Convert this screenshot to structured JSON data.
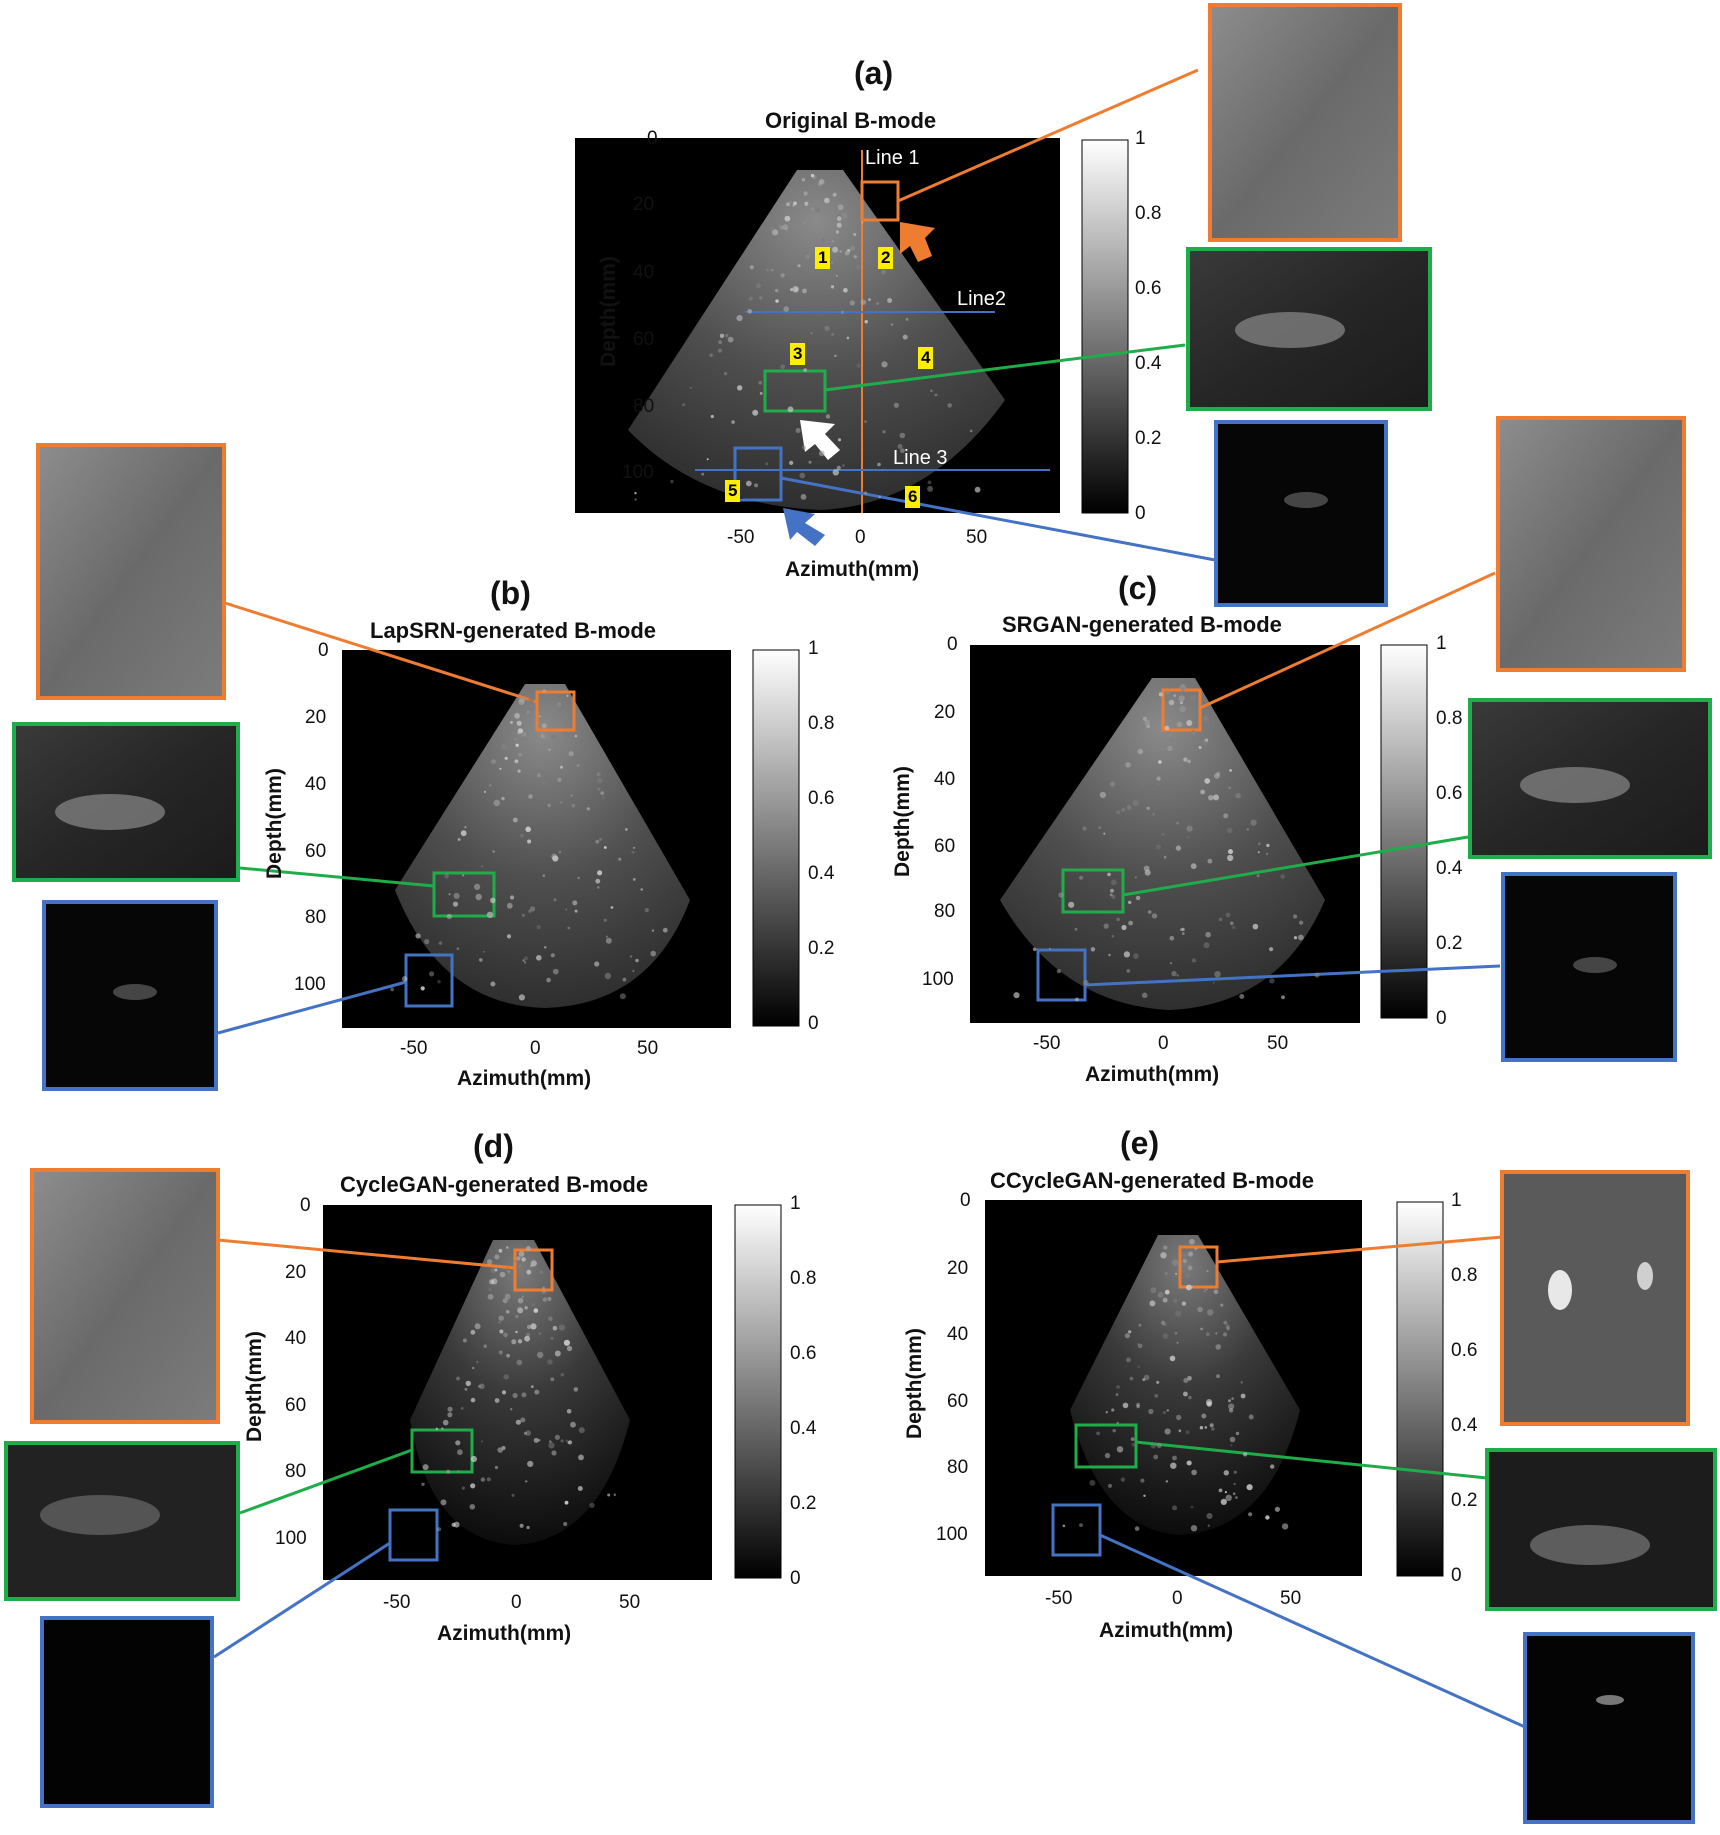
{
  "colors": {
    "orange": "#ee7d31",
    "green": "#1fad4a",
    "blue": "#4472c4",
    "highlight": "#ffee00",
    "background": "#000000"
  },
  "panels": [
    {
      "id": "a",
      "label": "(a)",
      "title": "Original B-mode",
      "xlabel": "Azimuth(mm)",
      "ylabel": "Depth(mm)",
      "yticks": [
        "0",
        "20",
        "40",
        "60",
        "80",
        "100"
      ],
      "xticks": [
        "-50",
        "0",
        "50"
      ],
      "colorbar_ticks": [
        "1",
        "0.8",
        "0.6",
        "0.4",
        "0.2",
        "0"
      ],
      "annotations": {
        "line1": "Line 1",
        "line2": "Line2",
        "line3": "Line 3",
        "regions": [
          "1",
          "2",
          "3",
          "4",
          "5",
          "6"
        ]
      }
    },
    {
      "id": "b",
      "label": "(b)",
      "title": "LapSRN-generated B-mode",
      "xlabel": "Azimuth(mm)",
      "ylabel": "Depth(mm)",
      "yticks": [
        "0",
        "20",
        "40",
        "60",
        "80",
        "100"
      ],
      "xticks": [
        "-50",
        "0",
        "50"
      ],
      "colorbar_ticks": [
        "1",
        "0.8",
        "0.6",
        "0.4",
        "0.2",
        "0"
      ]
    },
    {
      "id": "c",
      "label": "(c)",
      "title": "SRGAN-generated B-mode",
      "xlabel": "Azimuth(mm)",
      "ylabel": "Depth(mm)",
      "yticks": [
        "0",
        "20",
        "40",
        "60",
        "80",
        "100"
      ],
      "xticks": [
        "-50",
        "0",
        "50"
      ],
      "colorbar_ticks": [
        "1",
        "0.8",
        "0.6",
        "0.4",
        "0.2",
        "0"
      ]
    },
    {
      "id": "d",
      "label": "(d)",
      "title": "CycleGAN-generated B-mode",
      "xlabel": "Azimuth(mm)",
      "ylabel": "Depth(mm)",
      "yticks": [
        "0",
        "20",
        "40",
        "60",
        "80",
        "100"
      ],
      "xticks": [
        "-50",
        "0",
        "50"
      ],
      "colorbar_ticks": [
        "1",
        "0.8",
        "0.6",
        "0.4",
        "0.2",
        "0"
      ]
    },
    {
      "id": "e",
      "label": "(e)",
      "title": "CCycleGAN-generated B-mode",
      "xlabel": "Azimuth(mm)",
      "ylabel": "Depth(mm)",
      "yticks": [
        "0",
        "20",
        "40",
        "60",
        "80",
        "100"
      ],
      "xticks": [
        "-50",
        "0",
        "50"
      ],
      "colorbar_ticks": [
        "1",
        "0.8",
        "0.6",
        "0.4",
        "0.2",
        "0"
      ]
    }
  ]
}
